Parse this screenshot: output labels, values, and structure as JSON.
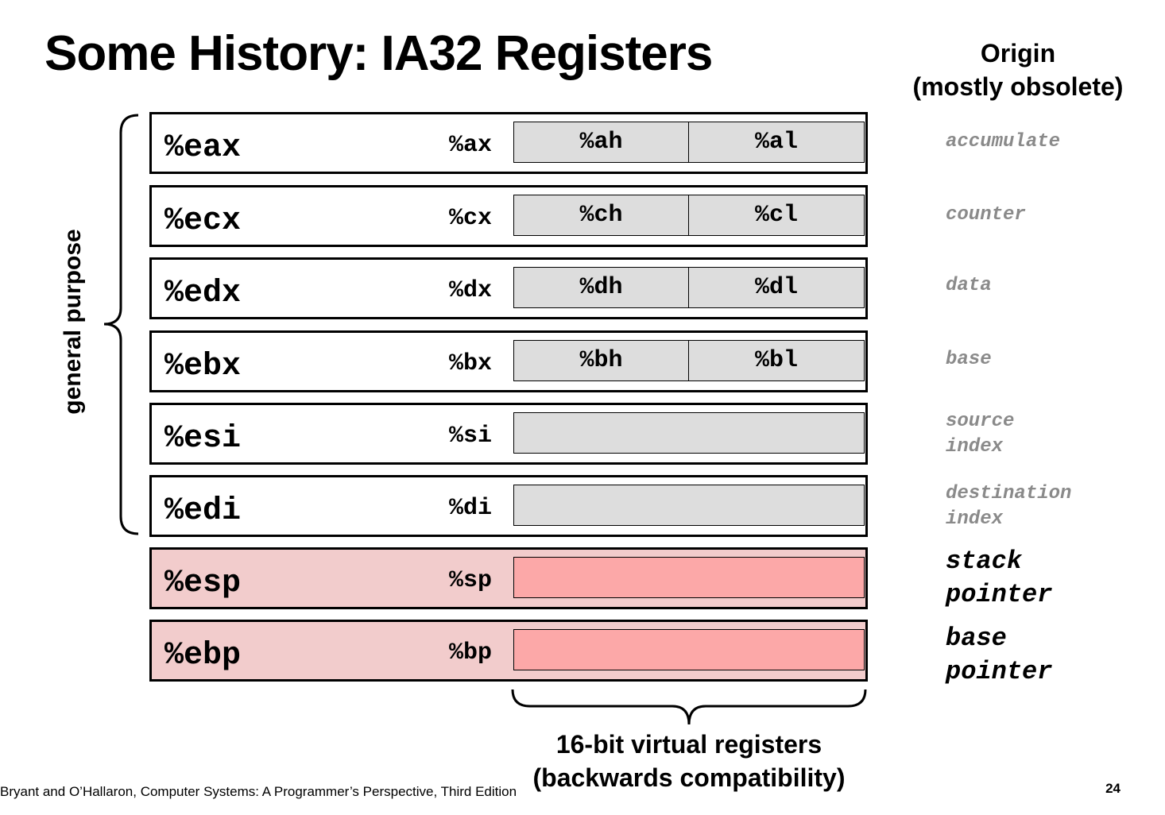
{
  "title": "Some History: IA32 Registers",
  "origin_header": {
    "line1": "Origin",
    "line2": "(mostly obsolete)"
  },
  "general_purpose_label": "general purpose",
  "registers": [
    {
      "name32": "%eax",
      "name16": "%ax",
      "high8": "%ah",
      "low8": "%al",
      "origin": "accumulate"
    },
    {
      "name32": "%ecx",
      "name16": "%cx",
      "high8": "%ch",
      "low8": "%cl",
      "origin": "counter"
    },
    {
      "name32": "%edx",
      "name16": "%dx",
      "high8": "%dh",
      "low8": "%dl",
      "origin": "data"
    },
    {
      "name32": "%ebx",
      "name16": "%bx",
      "high8": "%bh",
      "low8": "%bl",
      "origin": "base"
    },
    {
      "name32": "%esi",
      "name16": "%si",
      "origin": "source\nindex"
    },
    {
      "name32": "%edi",
      "name16": "%di",
      "origin": "destination\nindex"
    },
    {
      "name32": "%esp",
      "name16": "%sp",
      "origin": "stack\npointer"
    },
    {
      "name32": "%ebp",
      "name16": "%bp",
      "origin": "base\npointer"
    }
  ],
  "virtual_label": {
    "line1": "16-bit virtual registers",
    "line2": "(backwards compatibility)"
  },
  "footer": "Bryant and O’Hallaron, Computer Systems: A Programmer’s Perspective, Third Edition",
  "page_number": "24",
  "colors": {
    "general_box": "#ffffff",
    "general_low": "#dddddd",
    "special_box": "#f2cccc",
    "special_low": "#fca8a8",
    "origin_grey": "#8a8a8a"
  }
}
